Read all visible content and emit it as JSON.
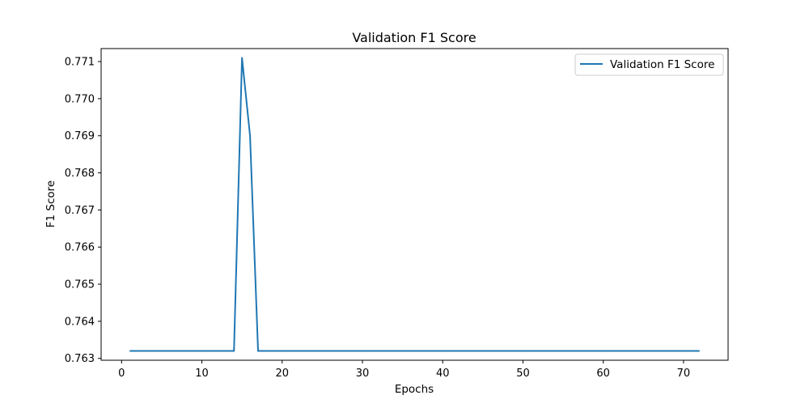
{
  "chart_data": {
    "type": "line",
    "title": "Validation F1 Score",
    "xlabel": "Epochs",
    "ylabel": "F1 Score",
    "xlim": [
      -2.55,
      75.55
    ],
    "ylim": [
      0.76295,
      0.77135
    ],
    "x_ticks": [
      0,
      10,
      20,
      30,
      40,
      50,
      60,
      70
    ],
    "y_ticks": [
      0.763,
      0.764,
      0.765,
      0.766,
      0.767,
      0.768,
      0.769,
      0.77,
      0.771
    ],
    "y_tick_labels": [
      "0.763",
      "0.764",
      "0.765",
      "0.766",
      "0.767",
      "0.768",
      "0.769",
      "0.770",
      "0.771"
    ],
    "grid": false,
    "legend": "top-right",
    "series": [
      {
        "name": "Validation F1 Score",
        "color": "#1f77b4",
        "x": [
          1,
          14,
          15,
          16,
          17,
          72
        ],
        "y": [
          0.7632,
          0.7632,
          0.7711,
          0.769,
          0.7632,
          0.7632
        ]
      }
    ]
  }
}
